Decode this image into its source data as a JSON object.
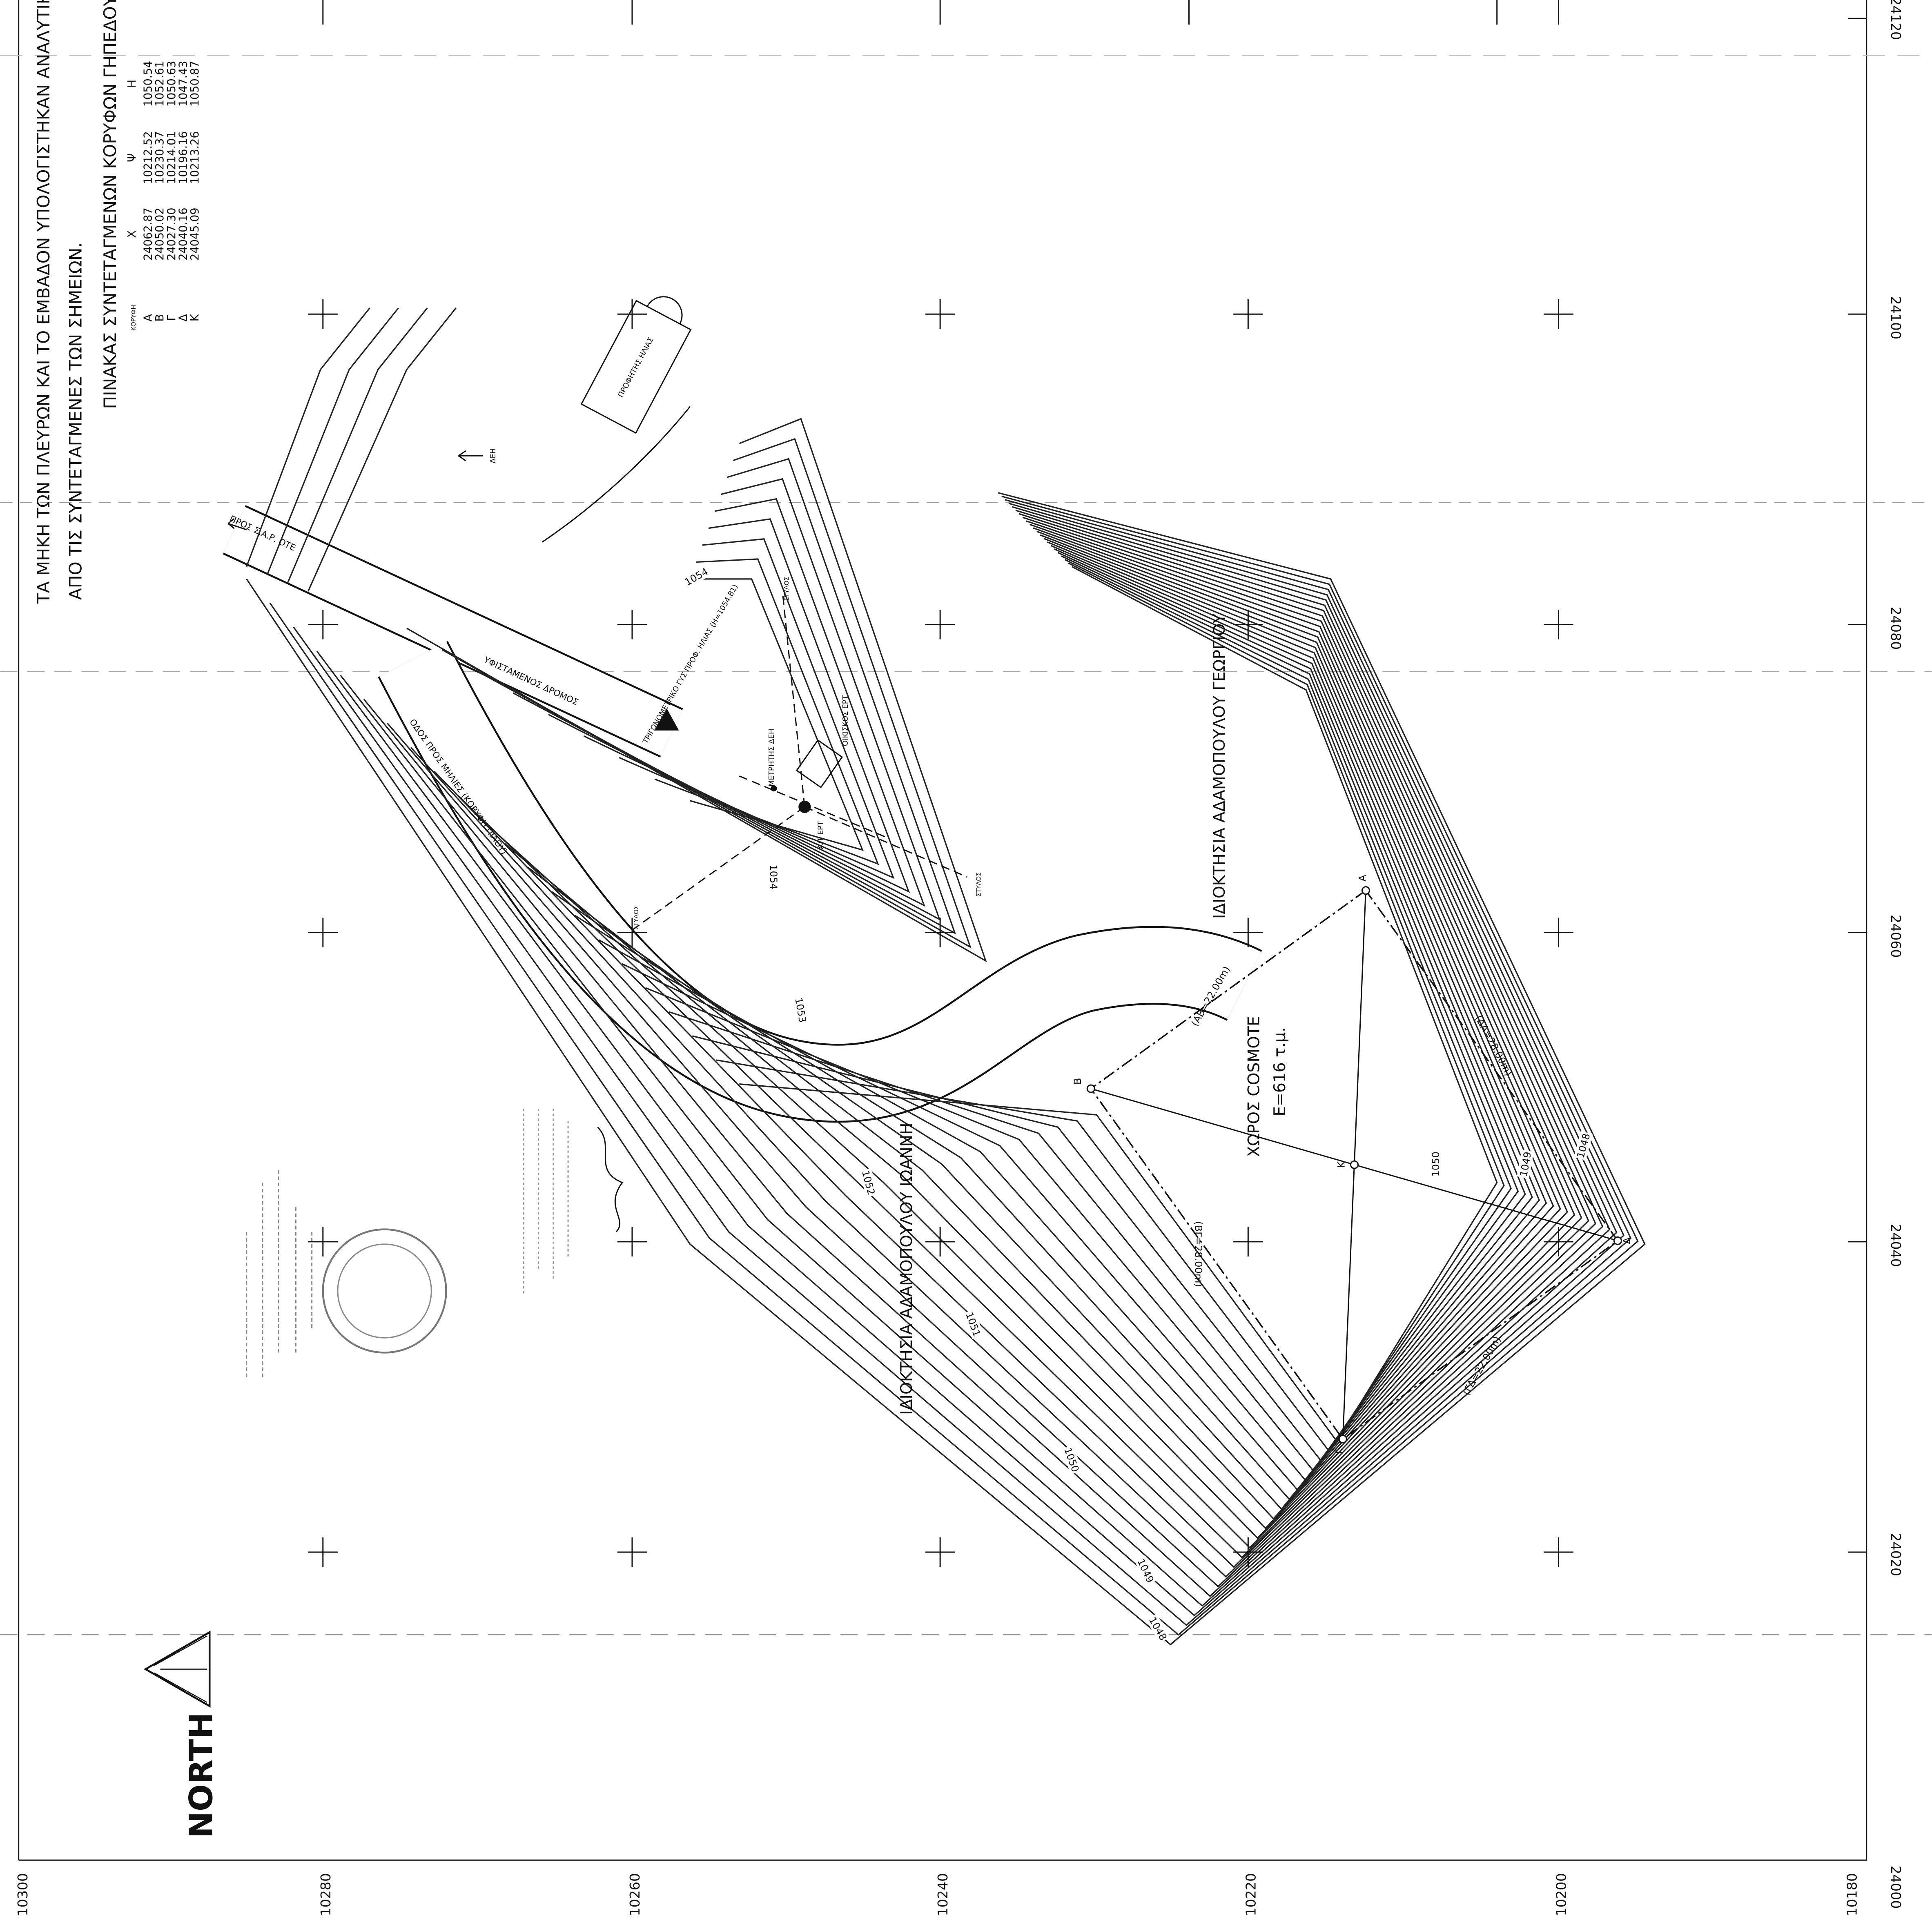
{
  "notes": [
    "ΤΑ ΜΗΚΗ ΤΩΝ ΠΛΕΥΡΩΝ ΚΑΙ ΤΟ ΕΜΒΑΔΟΝ ΥΠΟΛΟΓΙΣΤΗΚΑΝ ΑΝΑΛΥΤΙΚΑ",
    "ΑΠΟ ΤΙΣ ΣΥΝΤΕΤΑΓΜΕΝΕΣ ΤΩΝ ΣΗΜΕΙΩΝ."
  ],
  "table": {
    "title": "ΠΙΝΑΚΑΣ ΣΥΝΤΕΤΑΓΜΕΝΩΝ ΚΟΡΥΦΩΝ ΓΗΠΕΔΟΥ",
    "columns": [
      "ΚΟΡΥΦΗ",
      "Χ",
      "Ψ",
      "Η"
    ],
    "rows": [
      [
        "Α",
        "24062.87",
        "10212.52",
        "1050.54"
      ],
      [
        "Β",
        "24050.02",
        "10230.37",
        "1052.61"
      ],
      [
        "Γ",
        "24027.30",
        "10214.01",
        "1050.63"
      ],
      [
        "Δ",
        "24040.16",
        "10196.16",
        "1047.43"
      ],
      [
        "Κ",
        "24045.09",
        "10213.26",
        "1050.87"
      ]
    ]
  },
  "axes": {
    "x_labels": [
      "24120",
      "24100",
      "24080",
      "24060",
      "24040",
      "24020",
      "24000"
    ],
    "y_labels": [
      "10300",
      "10280",
      "10260",
      "10240",
      "10220",
      "10200",
      "10180"
    ]
  },
  "contour_labels": [
    "1054",
    "1054",
    "1053",
    "1052",
    "1051",
    "1050",
    "1049",
    "1048",
    "1050",
    "1049",
    "1048"
  ],
  "labels": {
    "church": "ΠΡΟΦΗΤΗΣ ΗΛΙΑΣ",
    "road_to": "ΠΡΟΣ Σ.Α.Ρ. ΟΤΕ",
    "power": "ΔΕΗ",
    "trig": "ΤΡΙΓΩΝΟΜΕΤΡΙΚΟ ΓΥΣ ΠΡΟΦ. ΗΛΙΑΣ (Η=1054.81)",
    "meter": "ΜΕΤΡΗΤΗΣ ΔΕΗ",
    "hut": "ΟΙΚΙΣΚΟΣ ΕΡΤ",
    "antenna": "Α/Τ ΕΡΤ",
    "pole": "ΣΤΥΛΟΣ",
    "existing_road": "ΥΦΙΣΤΑΜΕΝΟΣ ΔΡΟΜΟΣ",
    "road_name": "ΟΔΟΣ ΠΡΟΣ ΜΗΛΙΕΣ (ΚΟΡΥΦΗ ΠΙΛΟΥ)",
    "owner1": "ΙΔΙΟΚΤΗΣΙΑ ΑΔΑΜΟΠΟΥΛΟΥ ΓΕΩΡΓΙΟΥ",
    "owner2": "ΙΔΙΟΚΤΗΣΙΑ ΑΔΑΜΟΠΟΥΛΟΥ ΙΩΑΝΝΗ",
    "site": "ΧΩΡΟΣ COSMOTE",
    "area": "E=616 τ.μ.",
    "ab": "(ΑΒ=22.00m)",
    "bg": "(ΒΓ=28.00m)",
    "gd": "(ΓΔ=22.00m)",
    "da": "(ΔΑ=28.00m)",
    "north": "NORTH"
  }
}
